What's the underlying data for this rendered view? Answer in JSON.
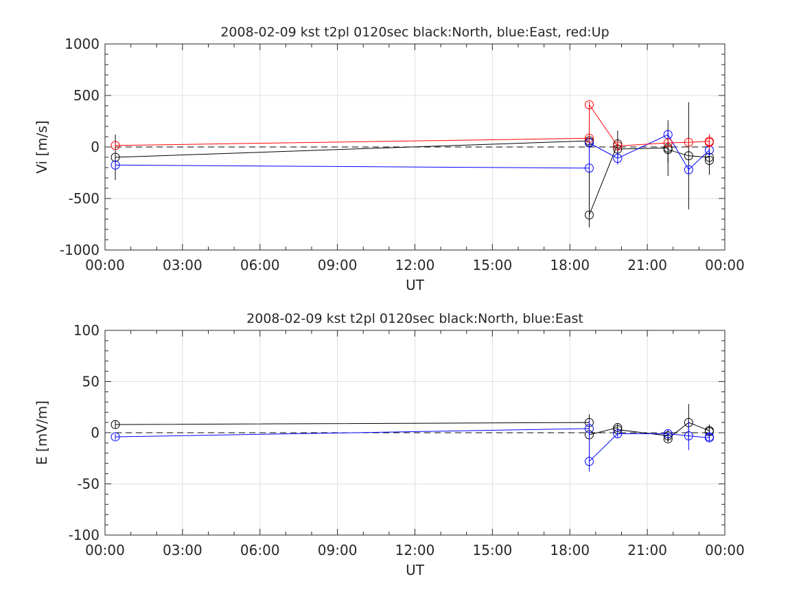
{
  "chart_data": [
    {
      "type": "scatter",
      "title": "2008-02-09 kst t2pl 0120sec black:North, blue:East, red:Up",
      "xlabel": "UT",
      "ylabel": "Vi [m/s]",
      "xlim": [
        0,
        24
      ],
      "ylim": [
        -1000,
        1000
      ],
      "x_ticks": [
        "00:00",
        "03:00",
        "06:00",
        "09:00",
        "12:00",
        "15:00",
        "18:00",
        "21:00",
        "00:00"
      ],
      "y_ticks": [
        "-1000",
        "-500",
        "0",
        "500",
        "1000"
      ],
      "grid": true,
      "zero_line": "dashed",
      "series": [
        {
          "color": "#000000",
          "points": [
            {
              "x": 0.4,
              "y": -100,
              "err": 220
            },
            {
              "x": 18.75,
              "y": 60,
              "err": 180
            },
            {
              "x": 18.75,
              "y": 45,
              "err": 0
            },
            {
              "x": 18.75,
              "y": -660,
              "err": 120
            },
            {
              "x": 19.85,
              "y": 30,
              "err": 130
            },
            {
              "x": 19.85,
              "y": -20,
              "err": 60
            },
            {
              "x": 21.8,
              "y": -10,
              "err": 270
            },
            {
              "x": 21.8,
              "y": -25,
              "err": 130
            },
            {
              "x": 22.6,
              "y": -85,
              "err": 520
            },
            {
              "x": 23.4,
              "y": -100,
              "err": 170
            },
            {
              "x": 23.4,
              "y": -130,
              "err": 60
            }
          ]
        },
        {
          "color": "#0000ff",
          "points": [
            {
              "x": 0.4,
              "y": -175,
              "err": 30
            },
            {
              "x": 18.75,
              "y": -205,
              "err": 30
            },
            {
              "x": 18.75,
              "y": 40,
              "err": 60
            },
            {
              "x": 19.85,
              "y": -110,
              "err": 60
            },
            {
              "x": 21.8,
              "y": 120,
              "err": 40
            },
            {
              "x": 22.6,
              "y": -220,
              "err": 40
            },
            {
              "x": 23.4,
              "y": -30,
              "err": 60
            }
          ]
        },
        {
          "color": "#ff0000",
          "points": [
            {
              "x": 0.4,
              "y": 15,
              "err": 20
            },
            {
              "x": 18.75,
              "y": 85,
              "err": 30
            },
            {
              "x": 18.75,
              "y": 410,
              "err": 30
            },
            {
              "x": 19.85,
              "y": 10,
              "err": 30
            },
            {
              "x": 21.8,
              "y": 40,
              "err": 30
            },
            {
              "x": 22.6,
              "y": 45,
              "err": 30
            },
            {
              "x": 23.4,
              "y": 55,
              "err": 70
            },
            {
              "x": 23.4,
              "y": 45,
              "err": 30
            }
          ]
        }
      ]
    },
    {
      "type": "scatter",
      "title": "2008-02-09 kst t2pl 0120sec black:North, blue:East",
      "xlabel": "UT",
      "ylabel": "E [mV/m]",
      "xlim": [
        0,
        24
      ],
      "ylim": [
        -100,
        100
      ],
      "x_ticks": [
        "00:00",
        "03:00",
        "06:00",
        "09:00",
        "12:00",
        "15:00",
        "18:00",
        "21:00",
        "00:00"
      ],
      "y_ticks": [
        "-100",
        "-50",
        "0",
        "50",
        "100"
      ],
      "grid": true,
      "zero_line": "dashed",
      "series": [
        {
          "color": "#000000",
          "points": [
            {
              "x": 0.4,
              "y": 8,
              "err": 4
            },
            {
              "x": 18.75,
              "y": 10,
              "err": 8
            },
            {
              "x": 18.75,
              "y": -2,
              "err": 3
            },
            {
              "x": 19.85,
              "y": 5,
              "err": 4
            },
            {
              "x": 19.85,
              "y": 3,
              "err": 3
            },
            {
              "x": 21.8,
              "y": -3,
              "err": 6
            },
            {
              "x": 21.8,
              "y": -6,
              "err": 3
            },
            {
              "x": 22.6,
              "y": 10,
              "err": 18
            },
            {
              "x": 23.4,
              "y": 2,
              "err": 6
            },
            {
              "x": 23.4,
              "y": 1,
              "err": 3
            }
          ]
        },
        {
          "color": "#0000ff",
          "points": [
            {
              "x": 0.4,
              "y": -4,
              "err": 3
            },
            {
              "x": 18.75,
              "y": 4,
              "err": 8
            },
            {
              "x": 18.75,
              "y": -28,
              "err": 10
            },
            {
              "x": 19.85,
              "y": -1,
              "err": 4
            },
            {
              "x": 21.8,
              "y": -1,
              "err": 4
            },
            {
              "x": 22.6,
              "y": -3,
              "err": 14
            },
            {
              "x": 23.4,
              "y": -5,
              "err": 3
            },
            {
              "x": 23.4,
              "y": -4,
              "err": 3
            }
          ]
        }
      ]
    }
  ]
}
